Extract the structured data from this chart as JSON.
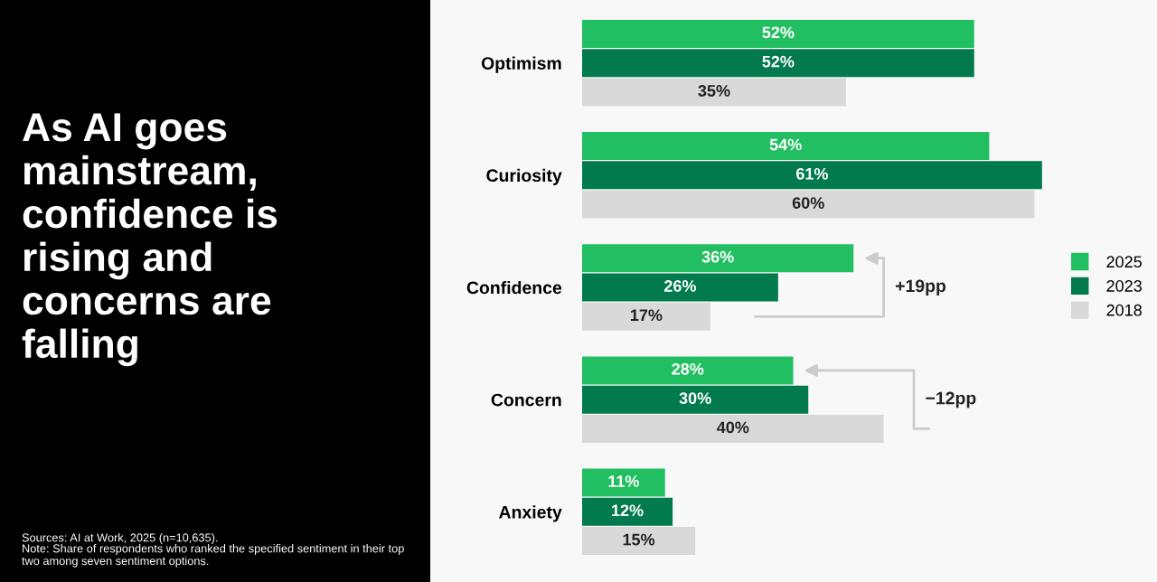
{
  "chart_data": {
    "type": "bar",
    "orientation": "horizontal",
    "title": "As AI goes mainstream, confidence is rising and concerns are falling",
    "categories": [
      "Optimism",
      "Curiosity",
      "Confidence",
      "Concern",
      "Anxiety"
    ],
    "series": [
      {
        "name": "2025",
        "color": "#22bf62",
        "values": [
          52,
          54,
          36,
          28,
          11
        ],
        "value_labels": [
          "52%",
          "54%",
          "36%",
          "28%",
          "11%"
        ]
      },
      {
        "name": "2023",
        "color": "#017a4e",
        "values": [
          52,
          61,
          26,
          30,
          12
        ],
        "value_labels": [
          "52%",
          "61%",
          "26%",
          "30%",
          "12%"
        ]
      },
      {
        "name": "2018",
        "color": "#d9d9d9",
        "values": [
          35,
          60,
          17,
          40,
          15
        ],
        "value_labels": [
          "35%",
          "60%",
          "17%",
          "40%",
          "15%"
        ]
      }
    ],
    "legend": "right",
    "grid": false,
    "tick_labels": "y",
    "annotations": [
      "+19pp",
      "−12pp",
      "Sources: AI at Work, 2025 (n=10,635).",
      "Note: Share of respondents who ranked the specified sentiment in their top two among seven sentiment options."
    ]
  }
}
